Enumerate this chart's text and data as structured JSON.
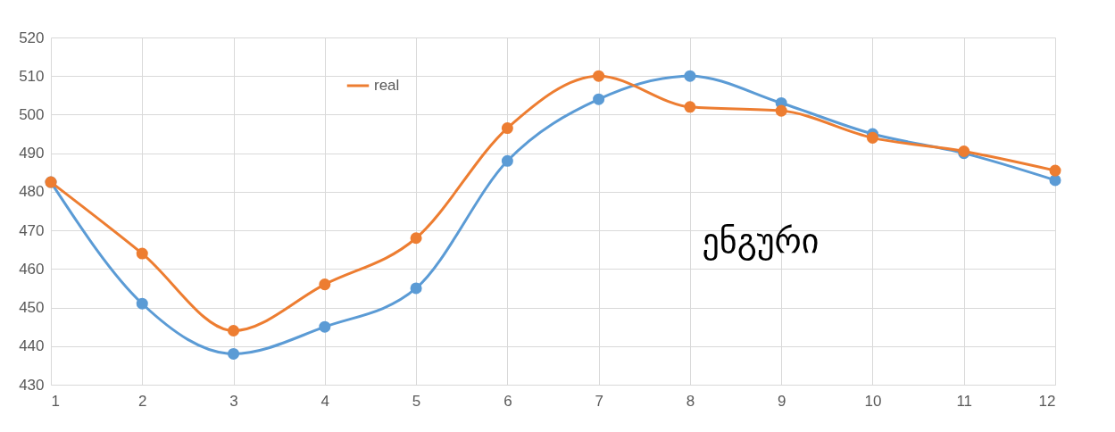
{
  "chart_data": {
    "type": "line",
    "x": [
      1,
      2,
      3,
      4,
      5,
      6,
      7,
      8,
      9,
      10,
      11,
      12
    ],
    "xlim": [
      1,
      12
    ],
    "xticks": [
      1,
      2,
      3,
      4,
      5,
      6,
      7,
      8,
      9,
      10,
      11,
      12
    ],
    "series": [
      {
        "color": "#5b9bd5",
        "values": [
          482.5,
          451,
          438,
          445,
          455,
          488,
          504,
          510,
          503,
          495,
          490,
          483
        ]
      },
      {
        "name": "real",
        "color": "#ed7d31",
        "values": [
          482.5,
          464,
          444,
          456,
          468,
          496.5,
          510,
          502,
          501,
          494,
          490.5,
          485.5
        ]
      }
    ],
    "ylim": [
      430,
      520
    ],
    "yticks": [
      430,
      440,
      450,
      460,
      470,
      480,
      490,
      500,
      510,
      520
    ],
    "grid": true,
    "legend": "top left",
    "marker": "circle",
    "line_style": "solid",
    "annotations": [
      "ენგური"
    ]
  }
}
